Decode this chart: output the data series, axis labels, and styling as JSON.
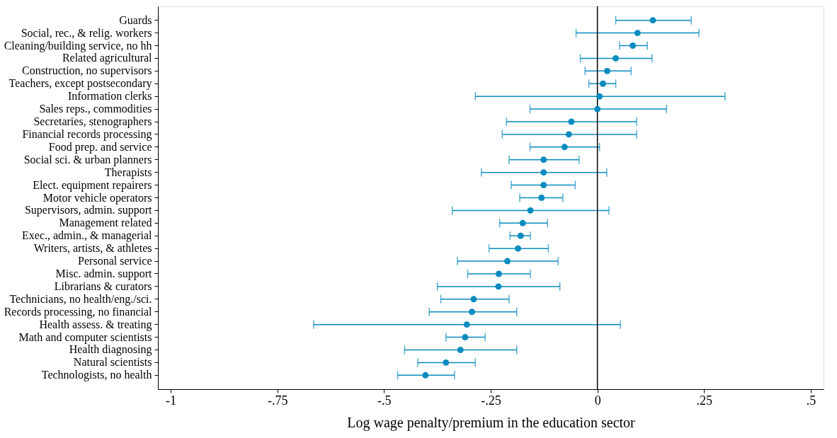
{
  "chart_data": {
    "type": "scatter",
    "xlabel": "Log wage penalty/premium in the education sector",
    "orientation": "horizontal",
    "categories": [
      "Guards",
      "Social, rec., & relig. workers",
      "Cleaning/building service, no hh",
      "Related agricultural",
      "Construction, no supervisors",
      "Teachers, except postsecondary",
      "Information clerks",
      "Sales reps., commodities",
      "Secretaries, stenographers",
      "Financial records processing",
      "Food prep. and service",
      "Social sci. & urban planners",
      "Therapists",
      "Elect. equipment repairers",
      "Motor vehicle operators",
      "Supervisors, admin. support",
      "Management related",
      "Exec., admin., & managerial",
      "Writers, artists, & athletes",
      "Personal service",
      "Misc. admin. support",
      "Librarians & curators",
      "Technicians, no health/eng./sci.",
      "Records processing, no financial",
      "Health assess. & treating",
      "Math and computer scientists",
      "Health diagnosing",
      "Natural scientists",
      "Technologists, no health"
    ],
    "values": [
      0.13,
      0.094,
      0.083,
      0.043,
      0.023,
      0.013,
      0.005,
      0.0,
      -0.061,
      -0.067,
      -0.077,
      -0.126,
      -0.126,
      -0.126,
      -0.131,
      -0.157,
      -0.175,
      -0.18,
      -0.186,
      -0.211,
      -0.231,
      -0.232,
      -0.29,
      -0.294,
      -0.306,
      -0.31,
      -0.321,
      -0.355,
      -0.403
    ],
    "errors": [
      [
        0.043,
        0.22
      ],
      [
        -0.05,
        0.238
      ],
      [
        0.052,
        0.117
      ],
      [
        -0.04,
        0.128
      ],
      [
        -0.029,
        0.079
      ],
      [
        -0.02,
        0.043
      ],
      [
        -0.286,
        0.299
      ],
      [
        -0.158,
        0.162
      ],
      [
        -0.213,
        0.092
      ],
      [
        -0.223,
        0.092
      ],
      [
        -0.158,
        0.005
      ],
      [
        -0.207,
        -0.043
      ],
      [
        -0.272,
        0.022
      ],
      [
        -0.202,
        -0.052
      ],
      [
        -0.182,
        -0.081
      ],
      [
        -0.34,
        0.027
      ],
      [
        -0.229,
        -0.117
      ],
      [
        -0.205,
        -0.157
      ],
      [
        -0.254,
        -0.115
      ],
      [
        -0.328,
        -0.092
      ],
      [
        -0.304,
        -0.157
      ],
      [
        -0.375,
        -0.088
      ],
      [
        -0.367,
        -0.207
      ],
      [
        -0.394,
        -0.189
      ],
      [
        -0.665,
        0.054
      ],
      [
        -0.355,
        -0.263
      ],
      [
        -0.452,
        -0.189
      ],
      [
        -0.421,
        -0.286
      ],
      [
        -0.468,
        -0.335
      ]
    ],
    "color": "#0a8bbf",
    "xlim": [
      -1.03,
      0.53
    ],
    "xticks": [
      {
        "value": -1,
        "label": "-1"
      },
      {
        "value": -0.75,
        "label": "-.75"
      },
      {
        "value": -0.5,
        "label": "-.5"
      },
      {
        "value": -0.25,
        "label": "-.25"
      },
      0,
      {
        "value": 0.25,
        "label": ".25"
      },
      {
        "value": 0.5,
        "label": ".5"
      }
    ],
    "ref_lines": [
      {
        "axis": "x",
        "value": 0,
        "label": null,
        "color": "#000000"
      }
    ],
    "marker": "circle",
    "grid": false
  }
}
